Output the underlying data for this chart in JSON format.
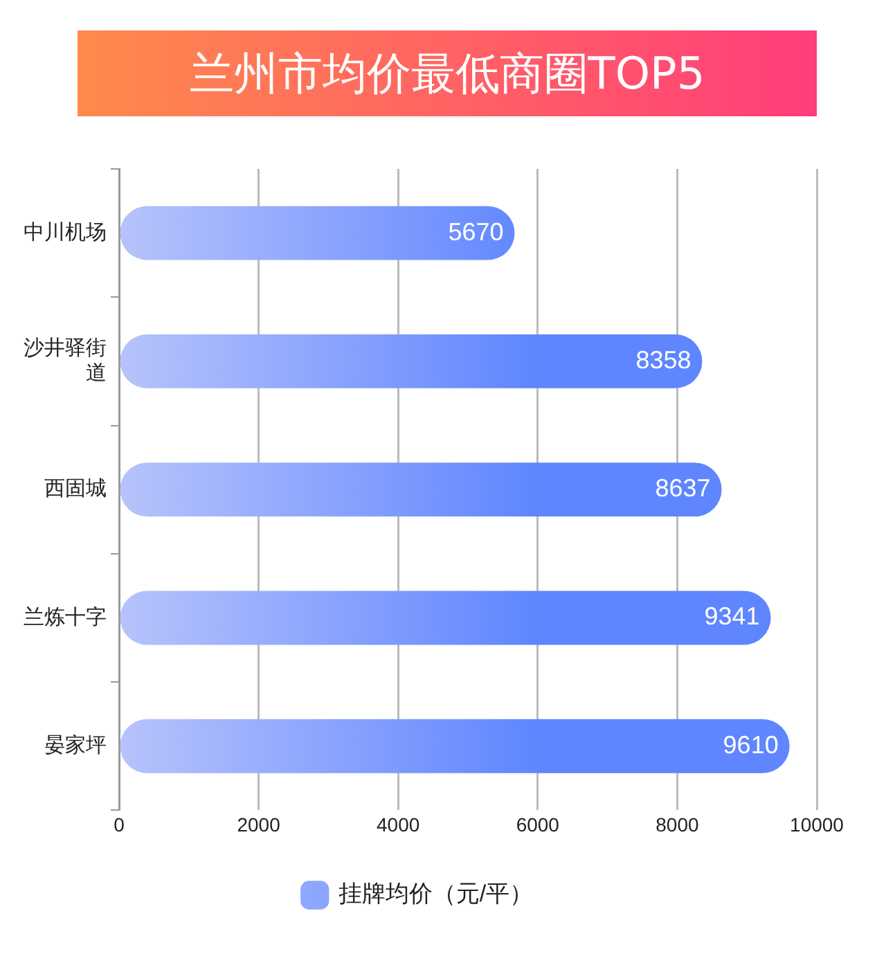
{
  "chart_data": {
    "type": "bar",
    "orientation": "horizontal",
    "title": "兰州市均价最低商圈TOP5",
    "categories": [
      "中川机场",
      "沙井驿街道",
      "西固城",
      "兰炼十字",
      "晏家坪"
    ],
    "series": [
      {
        "name": "挂牌均价（元/平）",
        "color": "#5f86ff",
        "values": [
          5670,
          8358,
          8637,
          9341,
          9610
        ]
      }
    ],
    "xlim": [
      0,
      10000
    ],
    "xticks": [
      0,
      2000,
      4000,
      6000,
      8000,
      10000
    ],
    "grid": "x",
    "legend": "bottom",
    "data_labels": true
  }
}
